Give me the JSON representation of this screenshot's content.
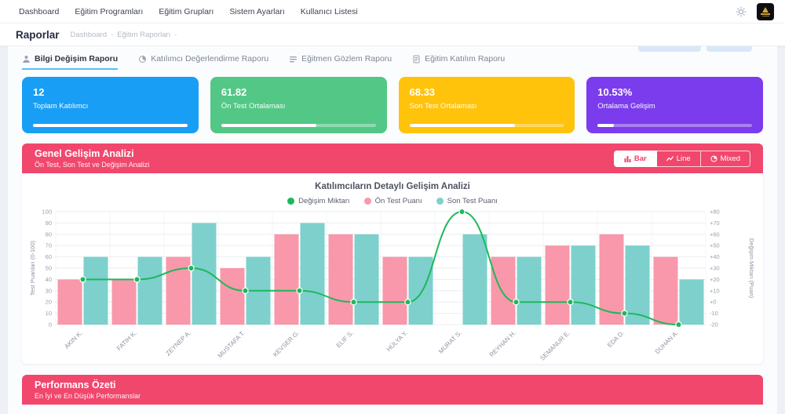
{
  "navbar": {
    "links": [
      "Dashboard",
      "Eğitim Programları",
      "Eğitim Grupları",
      "Sistem Ayarları",
      "Kullanıcı Listesi"
    ],
    "icons": [
      "theme-sun-icon",
      "brand-logo"
    ]
  },
  "header": {
    "title": "Raporlar",
    "breadcrumbs": [
      "Dashboard",
      "Eğitim Raporları"
    ]
  },
  "tabs": [
    {
      "label": "Bilgi Değişim Raporu",
      "icon": "person-report-icon",
      "active": true
    },
    {
      "label": "Katılımcı Değerlendirme Raporu",
      "icon": "pie-chart-icon",
      "active": false
    },
    {
      "label": "Eğitmen Gözlem Raporu",
      "icon": "list-report-icon",
      "active": false
    },
    {
      "label": "Eğitim Katılım Raporu",
      "icon": "document-report-icon",
      "active": false
    }
  ],
  "stats": [
    {
      "value": "12",
      "label": "Toplam Katılımcı",
      "color": "#189ff5",
      "progress": 100
    },
    {
      "value": "61.82",
      "label": "Ön Test Ortalaması",
      "color": "#53c786",
      "progress": 61.82
    },
    {
      "value": "68.33",
      "label": "Son Test Ortalaması",
      "color": "#ffc30b",
      "progress": 68.33
    },
    {
      "value": "10.53%",
      "label": "Ortalama Gelişim",
      "color": "#7b3ced",
      "progress": 10.53
    }
  ],
  "section": {
    "title": "Genel Gelişim Analizi",
    "subtitle": "Ön Test, Son Test ve Değişim Analizi",
    "view_buttons": [
      {
        "label": "Bar",
        "icon": "bar-chart-icon",
        "active": true
      },
      {
        "label": "Line",
        "icon": "line-chart-icon",
        "active": false
      },
      {
        "label": "Mixed",
        "icon": "mixed-chart-icon",
        "active": false
      }
    ]
  },
  "chart_data": {
    "type": "mixed",
    "title": "Katılımcıların Detaylı Gelişim Analizi",
    "categories": [
      "AKIN K.",
      "FATIH K.",
      "ZEYNEP A.",
      "MUSTAFA T.",
      "KEVSER G.",
      "ELIF S.",
      "HÜLYA Y.",
      "MURAT S.",
      "REYHAN H.",
      "SEMANUR E.",
      "EDA D.",
      "DUHAN A."
    ],
    "series": [
      {
        "name": "Değişim Miktarı",
        "type": "line",
        "axis": "right",
        "color": "#1db85c",
        "values": [
          20,
          20,
          30,
          10,
          10,
          0,
          0,
          80,
          0,
          0,
          -10,
          -20
        ]
      },
      {
        "name": "Ön Test Puanı",
        "type": "bar",
        "axis": "left",
        "color": "#f898aa",
        "values": [
          40,
          40,
          60,
          50,
          80,
          80,
          60,
          0,
          60,
          70,
          80,
          60
        ]
      },
      {
        "name": "Son Test Puanı",
        "type": "bar",
        "axis": "left",
        "color": "#7ed0cc",
        "values": [
          60,
          60,
          90,
          60,
          90,
          80,
          60,
          80,
          60,
          70,
          70,
          40
        ]
      }
    ],
    "left_axis": {
      "label": "Test Puanları (0-100)",
      "min": 0,
      "max": 100,
      "step": 10
    },
    "right_axis": {
      "label": "Değişim Miktarı (Puan)",
      "min": -20,
      "max": 80,
      "step": 10
    },
    "grid": true,
    "legend_position": "top"
  },
  "performance": {
    "title": "Performans Özeti",
    "subtitle": "En İyi ve En Düşük Performanslar"
  },
  "colors": {
    "accent_pink": "#f1476d",
    "tab_underline": "#58c0f5"
  }
}
